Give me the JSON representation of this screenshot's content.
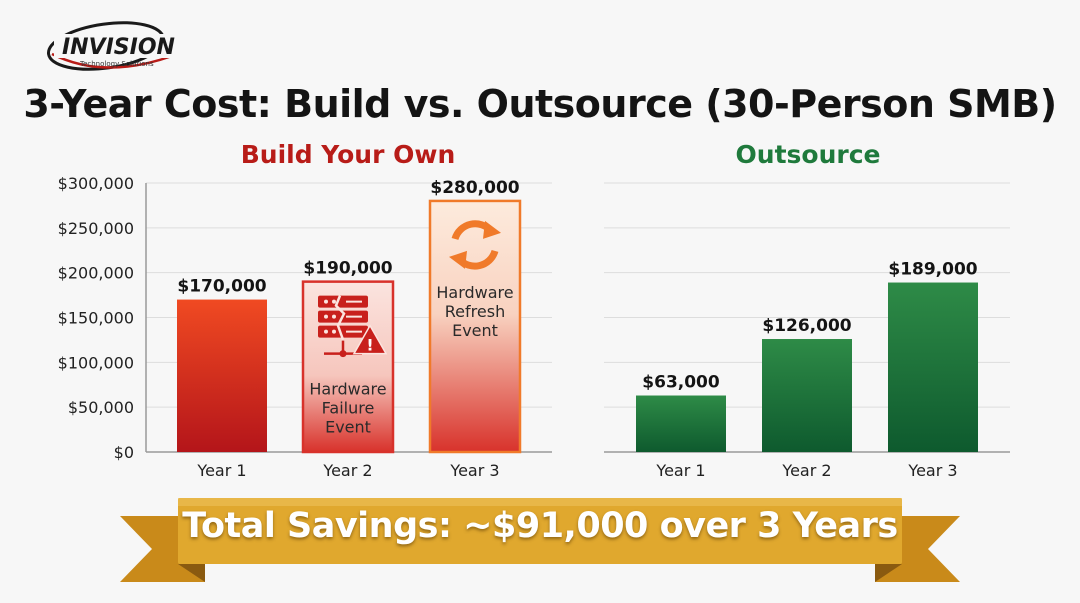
{
  "brand": {
    "logo_text": "INVISION",
    "logo_subtext": "Technology Solutions"
  },
  "title": "3-Year Cost: Build vs. Outsource (30-Person SMB)",
  "colors": {
    "build_title": "#b81c18",
    "outsource_title": "#1f7a3c",
    "build_bar_top": "#f04a22",
    "build_bar_bottom": "#b4151a",
    "outsource_bar_top": "#2e8b47",
    "outsource_bar_bottom": "#0e5a2e",
    "banner": "#e0a82e"
  },
  "chart_data": [
    {
      "type": "bar",
      "title": "Build Your Own",
      "categories": [
        "Year 1",
        "Year 2",
        "Year 3"
      ],
      "values": [
        170000,
        190000,
        280000
      ],
      "data_labels": [
        "$170,000",
        "$190,000",
        "$280,000"
      ],
      "ylim": [
        0,
        300000
      ],
      "yticks": [
        0,
        50000,
        100000,
        150000,
        200000,
        250000,
        300000
      ],
      "ytick_labels": [
        "$0",
        "$50,000",
        "$100,000",
        "$150,000",
        "$200,000",
        "$250,000",
        "$300,000"
      ],
      "grid": true,
      "annotations": [
        {
          "category": "Year 2",
          "icon": "server-warning-icon",
          "lines": [
            "Hardware",
            "Failure",
            "Event"
          ]
        },
        {
          "category": "Year 3",
          "icon": "refresh-icon",
          "lines": [
            "Hardware",
            "Refresh",
            "Event"
          ]
        }
      ]
    },
    {
      "type": "bar",
      "title": "Outsource",
      "categories": [
        "Year 1",
        "Year 2",
        "Year 3"
      ],
      "values": [
        63000,
        126000,
        189000
      ],
      "data_labels": [
        "$63,000",
        "$126,000",
        "$189,000"
      ],
      "ylim": [
        0,
        300000
      ],
      "grid": true
    }
  ],
  "banner_text": "Total Savings: ~$91,000 over 3 Years"
}
